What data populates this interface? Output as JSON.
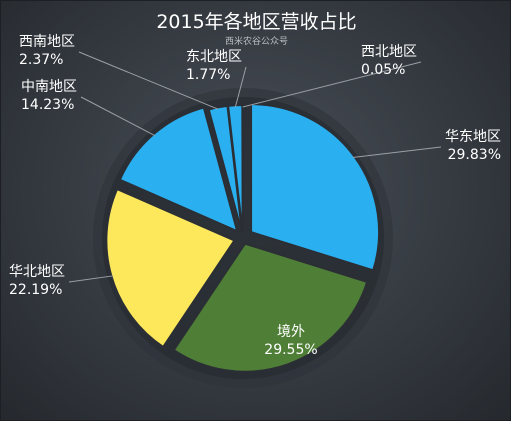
{
  "header": {
    "title": "2015年各地区营收占比",
    "subtitle": "西米农谷公众号"
  },
  "chart_data": {
    "type": "pie",
    "title": "2015年各地区营收占比",
    "slices": [
      {
        "name": "华东地区",
        "value": 29.83,
        "label": "29.83%",
        "color": "#2ab0f0"
      },
      {
        "name": "境外",
        "value": 29.55,
        "label": "29.55%",
        "color": "#4f7e36"
      },
      {
        "name": "华北地区",
        "value": 22.19,
        "label": "22.19%",
        "color": "#fde85b"
      },
      {
        "name": "中南地区",
        "value": 14.23,
        "label": "14.23%",
        "color": "#2ab0f0"
      },
      {
        "name": "西南地区",
        "value": 2.37,
        "label": "2.37%",
        "color": "#2ab0f0"
      },
      {
        "name": "东北地区",
        "value": 1.77,
        "label": "1.77%",
        "color": "#2ab0f0"
      },
      {
        "name": "西北地区",
        "value": 0.05,
        "label": "0.05%",
        "color": "#2ab0f0"
      }
    ],
    "slice_border_color": "#2b2f35",
    "leader_line_color": "#9aa0a6"
  }
}
